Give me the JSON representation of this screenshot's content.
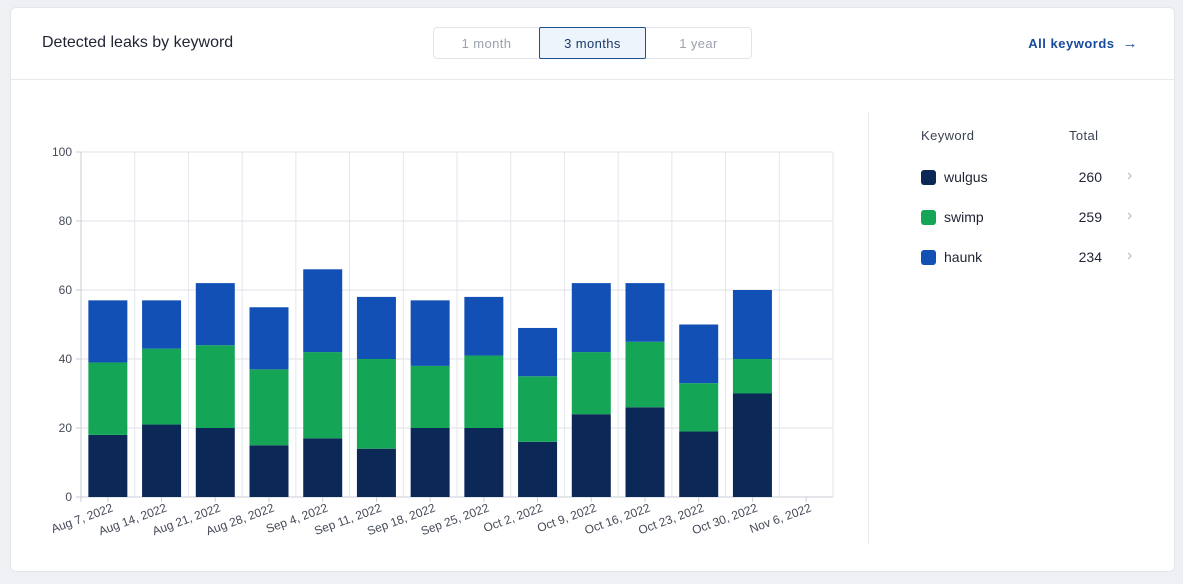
{
  "header": {
    "title": "Detected leaks by keyword",
    "ranges": [
      {
        "label": "1 month",
        "active": false
      },
      {
        "label": "3 months",
        "active": true
      },
      {
        "label": "1 year",
        "active": false
      }
    ],
    "all_keywords_label": "All keywords"
  },
  "legend": {
    "col_keyword": "Keyword",
    "col_total": "Total",
    "rows": [
      {
        "name": "wulgus",
        "total": "260",
        "color": "#0c2857"
      },
      {
        "name": "swimp",
        "total": "259",
        "color": "#15a556"
      },
      {
        "name": "haunk",
        "total": "234",
        "color": "#1350b5"
      }
    ]
  },
  "chart_data": {
    "type": "bar",
    "stacked": true,
    "categories": [
      "Aug 7, 2022",
      "Aug 14, 2022",
      "Aug 21, 2022",
      "Aug 28, 2022",
      "Sep 4, 2022",
      "Sep 11, 2022",
      "Sep 18, 2022",
      "Sep 25, 2022",
      "Oct 2, 2022",
      "Oct 9, 2022",
      "Oct 16, 2022",
      "Oct 23, 2022",
      "Oct 30, 2022",
      "Nov 6, 2022"
    ],
    "series": [
      {
        "name": "wulgus",
        "color": "#0c2857",
        "values": [
          18,
          21,
          20,
          15,
          17,
          14,
          20,
          20,
          16,
          24,
          26,
          19,
          30,
          0
        ]
      },
      {
        "name": "swimp",
        "color": "#15a556",
        "values": [
          21,
          22,
          24,
          22,
          25,
          26,
          18,
          21,
          19,
          18,
          19,
          14,
          10,
          0
        ]
      },
      {
        "name": "haunk",
        "color": "#1350b5",
        "values": [
          18,
          14,
          18,
          18,
          24,
          18,
          19,
          17,
          14,
          20,
          17,
          17,
          20,
          0
        ]
      }
    ],
    "yticks": [
      0,
      20,
      40,
      60,
      80,
      100
    ],
    "ylim": [
      0,
      100
    ],
    "grid": true,
    "legend": "right"
  }
}
